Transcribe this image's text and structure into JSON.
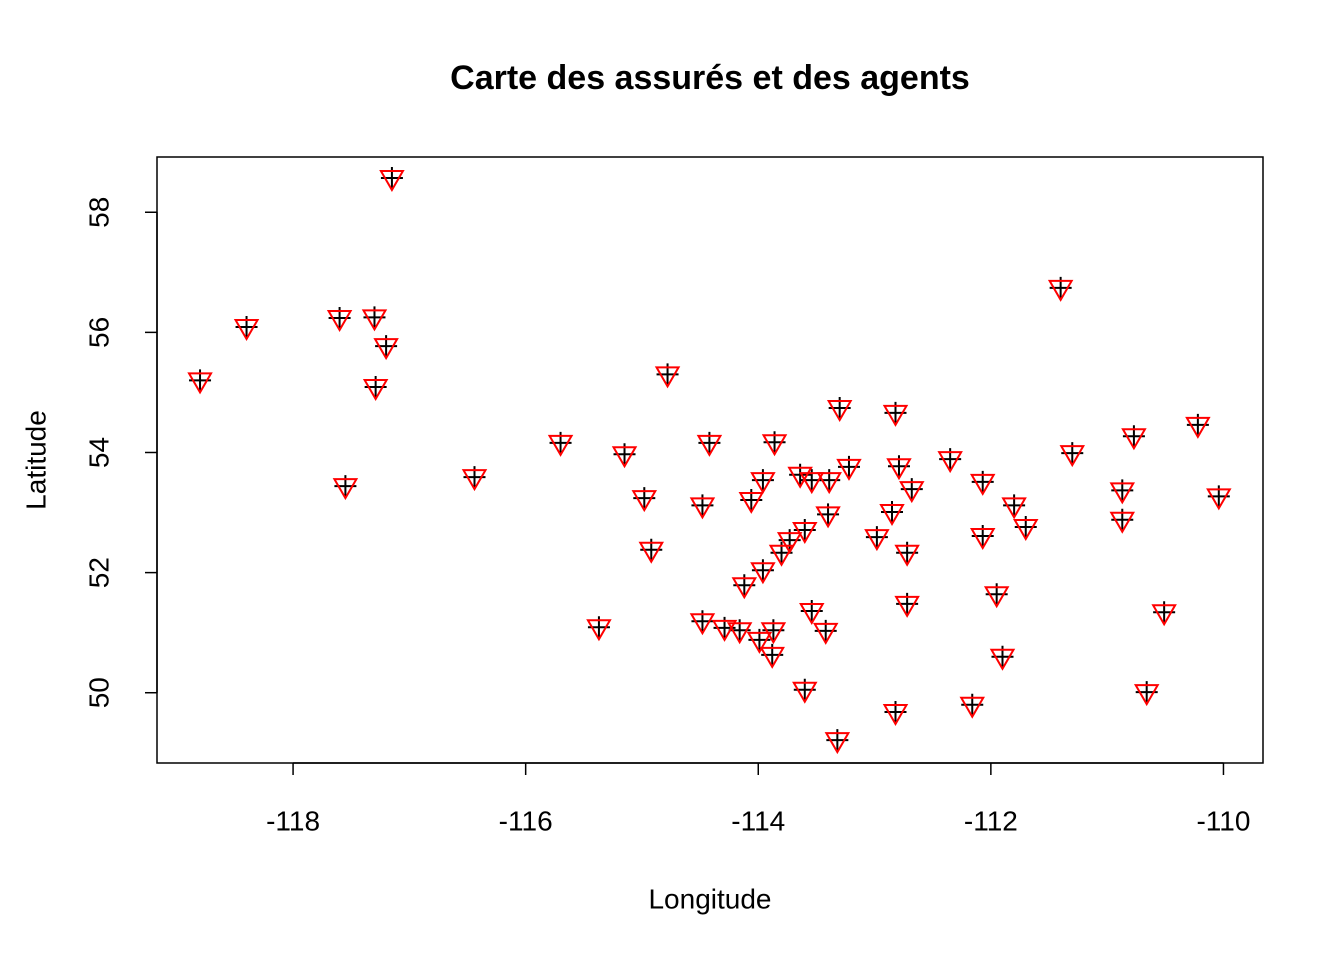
{
  "chart_data": {
    "type": "scatter",
    "title": "Carte des assurés et des agents",
    "x_label": "Longitude",
    "y_label": "Latitude",
    "xlim": [
      -119.17,
      -109.66
    ],
    "ylim": [
      48.83,
      58.92
    ],
    "xticks": [
      -118,
      -116,
      -114,
      -112,
      -110
    ],
    "yticks": [
      50,
      52,
      54,
      56,
      58
    ],
    "grid": false,
    "series": [
      {
        "color": "#000000",
        "marker": "plus",
        "x": [
          -118.8,
          -118.4,
          -117.6,
          -117.3,
          -117.15,
          -117.2,
          -117.29,
          -117.55,
          -116.44,
          -115.7,
          -115.15,
          -114.98,
          -114.92,
          -115.37,
          -114.78,
          -114.48,
          -114.42,
          -114.48,
          -114.16,
          -114.06,
          -113.96,
          -113.86,
          -114.12,
          -113.96,
          -113.8,
          -113.73,
          -113.6,
          -113.54,
          -113.39,
          -113.4,
          -113.3,
          -113.22,
          -113.54,
          -113.42,
          -113.6,
          -113.88,
          -113.87,
          -113.32,
          -112.98,
          -112.85,
          -112.82,
          -112.79,
          -112.68,
          -112.72,
          -112.72,
          -112.82,
          -112.35,
          -112.07,
          -112.07,
          -112.16,
          -111.95,
          -111.9,
          -111.8,
          -111.7,
          -111.4,
          -111.3,
          -110.87,
          -110.87,
          -110.77,
          -110.66,
          -110.51,
          -110.22,
          -110.04,
          -113.64,
          -113.99,
          -114.29
        ],
        "y": [
          55.2,
          56.09,
          56.24,
          56.25,
          58.57,
          55.77,
          55.09,
          53.44,
          53.59,
          54.16,
          53.97,
          53.24,
          52.38,
          51.09,
          55.3,
          53.12,
          54.16,
          51.19,
          51.04,
          53.21,
          53.54,
          54.17,
          51.79,
          52.04,
          52.33,
          52.54,
          52.71,
          53.54,
          53.54,
          52.97,
          54.74,
          53.76,
          51.36,
          51.03,
          50.05,
          50.63,
          51.04,
          49.21,
          52.59,
          53.01,
          54.66,
          53.77,
          53.39,
          52.33,
          51.48,
          49.68,
          53.89,
          53.51,
          52.61,
          49.8,
          51.64,
          50.6,
          53.12,
          52.76,
          56.74,
          53.99,
          53.37,
          52.88,
          54.27,
          50.01,
          51.34,
          54.46,
          53.27,
          53.63,
          50.88,
          51.08
        ]
      },
      {
        "color": "#ff0000",
        "marker": "triangle-down",
        "x": [
          -118.8,
          -118.4,
          -117.6,
          -117.3,
          -117.15,
          -117.2,
          -117.29,
          -117.55,
          -116.44,
          -115.7,
          -115.15,
          -114.98,
          -114.92,
          -115.37,
          -114.78,
          -114.48,
          -114.42,
          -114.48,
          -114.16,
          -114.06,
          -113.96,
          -113.86,
          -114.12,
          -113.96,
          -113.8,
          -113.73,
          -113.6,
          -113.54,
          -113.39,
          -113.4,
          -113.3,
          -113.22,
          -113.54,
          -113.42,
          -113.6,
          -113.88,
          -113.87,
          -113.32,
          -112.98,
          -112.85,
          -112.82,
          -112.79,
          -112.68,
          -112.72,
          -112.72,
          -112.82,
          -112.35,
          -112.07,
          -112.07,
          -112.16,
          -111.95,
          -111.9,
          -111.8,
          -111.7,
          -111.4,
          -111.3,
          -110.87,
          -110.87,
          -110.77,
          -110.66,
          -110.51,
          -110.22,
          -110.04,
          -113.64,
          -113.99,
          -114.29
        ],
        "y": [
          55.2,
          56.09,
          56.24,
          56.25,
          58.57,
          55.77,
          55.09,
          53.44,
          53.59,
          54.16,
          53.97,
          53.24,
          52.38,
          51.09,
          55.3,
          53.12,
          54.16,
          51.19,
          51.04,
          53.21,
          53.54,
          54.17,
          51.79,
          52.04,
          52.33,
          52.54,
          52.71,
          53.54,
          53.54,
          52.97,
          54.74,
          53.76,
          51.36,
          51.03,
          50.05,
          50.63,
          51.04,
          49.21,
          52.59,
          53.01,
          54.66,
          53.77,
          53.39,
          52.33,
          51.48,
          49.68,
          53.89,
          53.51,
          52.61,
          49.8,
          51.64,
          50.6,
          53.12,
          52.76,
          56.74,
          53.99,
          53.37,
          52.88,
          54.27,
          50.01,
          51.34,
          54.46,
          53.27,
          53.63,
          50.88,
          51.08
        ]
      }
    ]
  }
}
